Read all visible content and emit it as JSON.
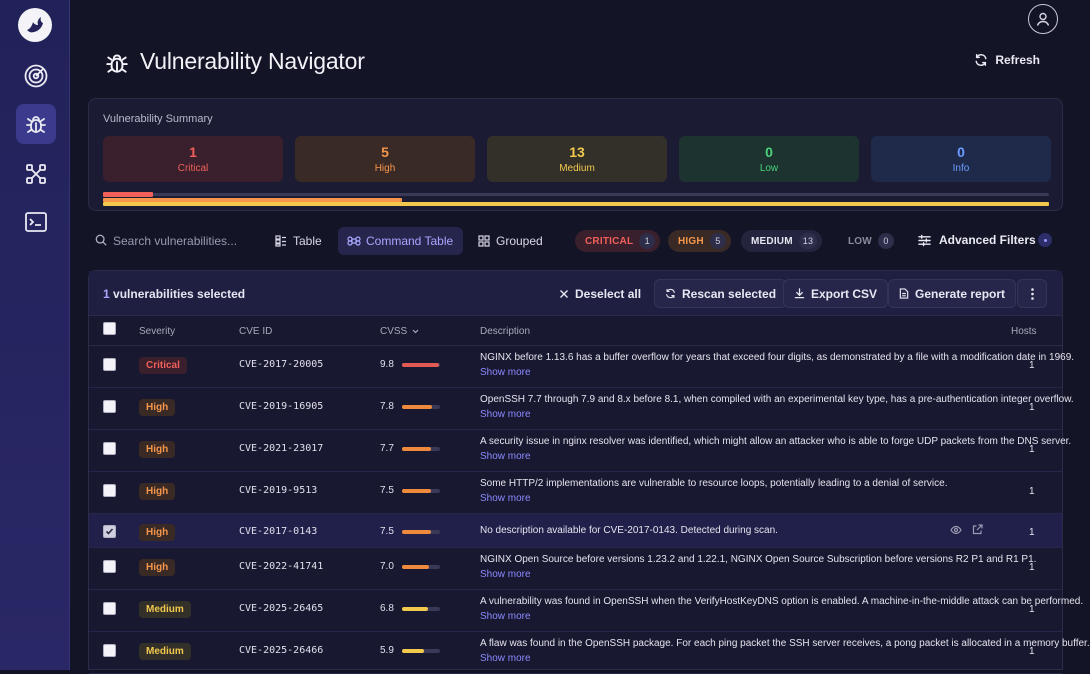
{
  "app": {
    "title": "Vulnerability Navigator",
    "refresh_label": "Refresh"
  },
  "sidebar": {
    "items": [
      {
        "icon": "radar-icon"
      },
      {
        "icon": "bug-icon",
        "active": true
      },
      {
        "icon": "network-icon"
      },
      {
        "icon": "terminal-icon"
      }
    ]
  },
  "summary": {
    "title": "Vulnerability Summary",
    "severities": [
      {
        "count": "1",
        "label": "Critical",
        "color": "#f0605a",
        "bg": "#3a1f2c"
      },
      {
        "count": "5",
        "label": "High",
        "color": "#f5964a",
        "bg": "#3a2a26"
      },
      {
        "count": "13",
        "label": "Medium",
        "color": "#f2c94c",
        "bg": "#33302a"
      },
      {
        "count": "0",
        "label": "Low",
        "color": "#4ad37a",
        "bg": "#1c3330"
      },
      {
        "count": "0",
        "label": "Info",
        "color": "#6b9cff",
        "bg": "#1f2a4a"
      }
    ],
    "distribution": {
      "critical": 1,
      "high": 5,
      "medium": 13,
      "low": 0,
      "info": 0,
      "total": 19
    }
  },
  "toolbar": {
    "search_placeholder": "Search vulnerabilities...",
    "views": [
      {
        "label": "Table",
        "icon": "table-icon"
      },
      {
        "label": "Command Table",
        "icon": "command-icon",
        "active": true
      },
      {
        "label": "Grouped",
        "icon": "grid-icon"
      }
    ],
    "filters": [
      {
        "label": "CRITICAL",
        "count": "1",
        "color": "#f0605a",
        "bg": "#3a1f2c"
      },
      {
        "label": "HIGH",
        "count": "5",
        "color": "#f5964a",
        "bg": "#3a2a26"
      },
      {
        "label": "MEDIUM",
        "count": "13",
        "color": "#e6e6f0",
        "bg": "#24243e"
      },
      {
        "label": "LOW",
        "count": "0",
        "color": "#8a8aa0",
        "bg": "transparent"
      }
    ],
    "advanced_filters_label": "Advanced Filters"
  },
  "selection": {
    "count": "1",
    "text": " vulnerabilities selected",
    "deselect_label": "Deselect all",
    "rescan_label": "Rescan selected",
    "export_label": "Export CSV",
    "report_label": "Generate report"
  },
  "table": {
    "headers": {
      "severity": "Severity",
      "cve": "CVE ID",
      "cvss": "CVSS",
      "description": "Description",
      "hosts": "Hosts"
    },
    "show_more": "Show more",
    "rows": [
      {
        "severity": "Critical",
        "cve": "CVE-2017-20005",
        "cvss": "9.8",
        "cvss_value": 9.8,
        "description": "NGINX before 1.13.6 has a buffer overflow for years that exceed four digits, as demonstrated by a file with a modification date in 1969.",
        "hosts": "1",
        "checked": false,
        "more": true
      },
      {
        "severity": "High",
        "cve": "CVE-2019-16905",
        "cvss": "7.8",
        "cvss_value": 7.8,
        "description": "OpenSSH 7.7 through 7.9 and 8.x before 8.1, when compiled with an experimental key type, has a pre-authentication integer overflow.",
        "hosts": "1",
        "checked": false,
        "more": true
      },
      {
        "severity": "High",
        "cve": "CVE-2021-23017",
        "cvss": "7.7",
        "cvss_value": 7.7,
        "description": "A security issue in nginx resolver was identified, which might allow an attacker who is able to forge UDP packets from the DNS server.",
        "hosts": "1",
        "checked": false,
        "more": true
      },
      {
        "severity": "High",
        "cve": "CVE-2019-9513",
        "cvss": "7.5",
        "cvss_value": 7.5,
        "description": "Some HTTP/2 implementations are vulnerable to resource loops, potentially leading to a denial of service.",
        "hosts": "1",
        "checked": false,
        "more": true
      },
      {
        "severity": "High",
        "cve": "CVE-2017-0143",
        "cvss": "7.5",
        "cvss_value": 7.5,
        "description": "No description available for CVE-2017-0143. Detected during scan.",
        "hosts": "1",
        "checked": true,
        "more": false
      },
      {
        "severity": "High",
        "cve": "CVE-2022-41741",
        "cvss": "7.0",
        "cvss_value": 7.0,
        "description": "NGINX Open Source before versions 1.23.2 and 1.22.1, NGINX Open Source Subscription before versions R2 P1 and R1 P1.",
        "hosts": "1",
        "checked": false,
        "more": true
      },
      {
        "severity": "Medium",
        "cve": "CVE-2025-26465",
        "cvss": "6.8",
        "cvss_value": 6.8,
        "description": "A vulnerability was found in OpenSSH when the VerifyHostKeyDNS option is enabled. A machine-in-the-middle attack can be performed.",
        "hosts": "1",
        "checked": false,
        "more": true
      },
      {
        "severity": "Medium",
        "cve": "CVE-2025-26466",
        "cvss": "5.9",
        "cvss_value": 5.9,
        "description": "A flaw was found in the OpenSSH package. For each ping packet the SSH server receives, a pong packet is allocated in a memory buffer.",
        "hosts": "1",
        "checked": false,
        "more": true
      }
    ]
  },
  "colors": {
    "critical": "#f0605a",
    "high": "#f5964a",
    "medium": "#f2c94c",
    "accent": "#8c8aff"
  }
}
